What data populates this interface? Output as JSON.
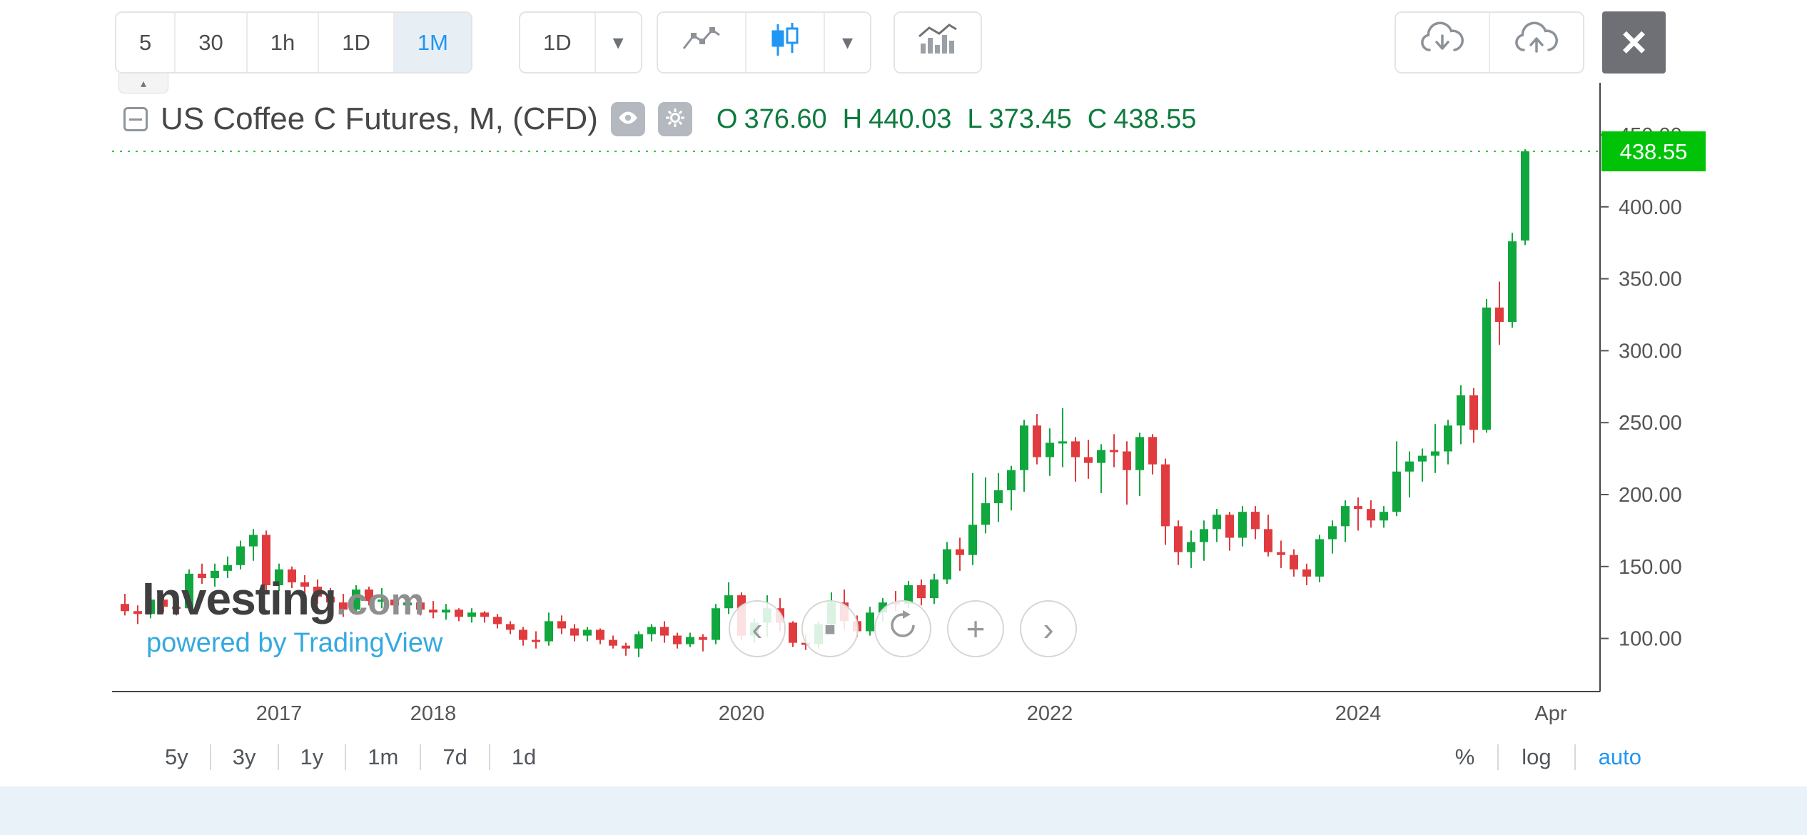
{
  "toolbar": {
    "intervals": [
      {
        "label": "5",
        "selected": false
      },
      {
        "label": "30",
        "selected": false
      },
      {
        "label": "1h",
        "selected": false
      },
      {
        "label": "1D",
        "selected": false
      },
      {
        "label": "1M",
        "selected": true
      }
    ],
    "dropdown_resolution": "1D"
  },
  "icons": {
    "caret": "▾",
    "close": "×",
    "scroll_up": "▴",
    "pan_left": "‹",
    "pan_right": "›",
    "zoom_in": "+",
    "reset_view": "■"
  },
  "chart": {
    "title": "US Coffee C Futures, M, (CFD)",
    "ohlc": {
      "o_label": "O",
      "o": "376.60",
      "h_label": "H",
      "h": "440.03",
      "l_label": "L",
      "l": "373.45",
      "c_label": "C",
      "c": "438.55"
    }
  },
  "watermark": {
    "brand": "Investing",
    "suffix": ".com",
    "powered": "powered by TradingView"
  },
  "bottom_toolbar": {
    "ranges": [
      "5y",
      "3y",
      "1y",
      "1m",
      "7d",
      "1d"
    ],
    "scales": [
      {
        "label": "%",
        "selected": false
      },
      {
        "label": "log",
        "selected": false
      },
      {
        "label": "auto",
        "selected": true
      }
    ]
  },
  "chart_data": {
    "type": "candlestick",
    "title": "US Coffee C Futures, M, (CFD)",
    "instrument": "US Coffee C Futures",
    "resolution": "M",
    "market": "CFD",
    "last_price": 438.55,
    "last_price_label": "438.55",
    "current_bar": {
      "open": 376.6,
      "high": 440.03,
      "low": 373.45,
      "close": 438.55
    },
    "colors": {
      "up": "#10a73e",
      "down": "#e03b3e",
      "last_price_line": "#2fc52f",
      "last_price_bg": "#00c307"
    },
    "y_axis": {
      "ticks": [
        {
          "value": 450,
          "label": "450.00"
        },
        {
          "value": 400,
          "label": "400.00"
        },
        {
          "value": 350,
          "label": "350.00"
        },
        {
          "value": 300,
          "label": "300.00"
        },
        {
          "value": 250,
          "label": "250.00"
        },
        {
          "value": 200,
          "label": "200.00"
        },
        {
          "value": 150,
          "label": "150.00"
        },
        {
          "value": 100,
          "label": "100.00"
        }
      ]
    },
    "x_axis": {
      "ticks": [
        {
          "i": 12,
          "label": "2017"
        },
        {
          "i": 24,
          "label": "2018"
        },
        {
          "i": 48,
          "label": "2020"
        },
        {
          "i": 72,
          "label": "2022"
        },
        {
          "i": 96,
          "label": "2024"
        },
        {
          "i": 111,
          "label": "Apr"
        }
      ]
    },
    "candles": [
      [
        "2016-01",
        124,
        131,
        116,
        119
      ],
      [
        "2016-02",
        119,
        123,
        110,
        117
      ],
      [
        "2016-03",
        117,
        134,
        114,
        127
      ],
      [
        "2016-04",
        127,
        131,
        118,
        122
      ],
      [
        "2016-05",
        122,
        127,
        116,
        121
      ],
      [
        "2016-06",
        121,
        148,
        119,
        145
      ],
      [
        "2016-07",
        145,
        152,
        138,
        142
      ],
      [
        "2016-08",
        142,
        152,
        136,
        147
      ],
      [
        "2016-09",
        147,
        157,
        142,
        151
      ],
      [
        "2016-10",
        151,
        168,
        148,
        164
      ],
      [
        "2016-11",
        164,
        176,
        154,
        172
      ],
      [
        "2016-12",
        172,
        175,
        133,
        137
      ],
      [
        "2017-01",
        137,
        152,
        133,
        148
      ],
      [
        "2017-02",
        148,
        150,
        135,
        139
      ],
      [
        "2017-03",
        139,
        144,
        131,
        136
      ],
      [
        "2017-04",
        136,
        141,
        124,
        129
      ],
      [
        "2017-05",
        129,
        135,
        121,
        125
      ],
      [
        "2017-06",
        125,
        131,
        115,
        120
      ],
      [
        "2017-07",
        120,
        137,
        118,
        134
      ],
      [
        "2017-08",
        134,
        136,
        123,
        126
      ],
      [
        "2017-09",
        126,
        135,
        121,
        127
      ],
      [
        "2017-10",
        127,
        130,
        119,
        123
      ],
      [
        "2017-11",
        123,
        129,
        118,
        125
      ],
      [
        "2017-12",
        125,
        127,
        116,
        120
      ],
      [
        "2018-01",
        120,
        126,
        114,
        118
      ],
      [
        "2018-02",
        118,
        124,
        113,
        120
      ],
      [
        "2018-03",
        120,
        121,
        112,
        115
      ],
      [
        "2018-04",
        115,
        121,
        111,
        118
      ],
      [
        "2018-05",
        118,
        119,
        111,
        115
      ],
      [
        "2018-06",
        115,
        117,
        107,
        110
      ],
      [
        "2018-07",
        110,
        112,
        103,
        106
      ],
      [
        "2018-08",
        106,
        108,
        95,
        99
      ],
      [
        "2018-09",
        99,
        105,
        93,
        98
      ],
      [
        "2018-10",
        98,
        118,
        95,
        112
      ],
      [
        "2018-11",
        112,
        116,
        103,
        107
      ],
      [
        "2018-12",
        107,
        110,
        98,
        102
      ],
      [
        "2019-01",
        102,
        108,
        98,
        106
      ],
      [
        "2019-02",
        106,
        107,
        96,
        99
      ],
      [
        "2019-03",
        99,
        102,
        93,
        95
      ],
      [
        "2019-04",
        95,
        97,
        88,
        93
      ],
      [
        "2019-05",
        93,
        105,
        87,
        103
      ],
      [
        "2019-06",
        103,
        110,
        98,
        108
      ],
      [
        "2019-07",
        108,
        112,
        97,
        102
      ],
      [
        "2019-08",
        102,
        104,
        93,
        96
      ],
      [
        "2019-09",
        96,
        104,
        94,
        101
      ],
      [
        "2019-10",
        101,
        103,
        91,
        99
      ],
      [
        "2019-11",
        99,
        124,
        96,
        121
      ],
      [
        "2019-12",
        121,
        139,
        117,
        130
      ],
      [
        "2020-01",
        130,
        132,
        99,
        102
      ],
      [
        "2020-02",
        102,
        114,
        97,
        111
      ],
      [
        "2020-03",
        111,
        130,
        101,
        121
      ],
      [
        "2020-04",
        121,
        128,
        105,
        111
      ],
      [
        "2020-05",
        111,
        112,
        94,
        97
      ],
      [
        "2020-06",
        97,
        103,
        92,
        96
      ],
      [
        "2020-07",
        96,
        112,
        93,
        110
      ],
      [
        "2020-08",
        110,
        132,
        108,
        125
      ],
      [
        "2020-09",
        125,
        134,
        106,
        112
      ],
      [
        "2020-10",
        112,
        116,
        101,
        105
      ],
      [
        "2020-11",
        105,
        122,
        102,
        118
      ],
      [
        "2020-12",
        118,
        128,
        112,
        125
      ],
      [
        "2021-01",
        125,
        133,
        119,
        124
      ],
      [
        "2021-02",
        124,
        140,
        121,
        137
      ],
      [
        "2021-03",
        137,
        141,
        123,
        128
      ],
      [
        "2021-04",
        128,
        145,
        124,
        141
      ],
      [
        "2021-05",
        141,
        167,
        138,
        162
      ],
      [
        "2021-06",
        162,
        170,
        147,
        158
      ],
      [
        "2021-07",
        158,
        215,
        151,
        179
      ],
      [
        "2021-08",
        179,
        212,
        173,
        194
      ],
      [
        "2021-09",
        194,
        215,
        181,
        203
      ],
      [
        "2021-10",
        203,
        220,
        189,
        217
      ],
      [
        "2021-11",
        217,
        252,
        202,
        248
      ],
      [
        "2021-12",
        248,
        256,
        221,
        226
      ],
      [
        "2022-01",
        226,
        246,
        213,
        236
      ],
      [
        "2022-02",
        236,
        260,
        219,
        237
      ],
      [
        "2022-03",
        237,
        240,
        209,
        226
      ],
      [
        "2022-04",
        226,
        238,
        211,
        222
      ],
      [
        "2022-05",
        222,
        235,
        201,
        231
      ],
      [
        "2022-06",
        231,
        242,
        219,
        230
      ],
      [
        "2022-07",
        230,
        237,
        193,
        217
      ],
      [
        "2022-08",
        217,
        243,
        199,
        240
      ],
      [
        "2022-09",
        240,
        242,
        214,
        221
      ],
      [
        "2022-10",
        221,
        225,
        165,
        178
      ],
      [
        "2022-11",
        178,
        182,
        151,
        160
      ],
      [
        "2022-12",
        160,
        175,
        149,
        167
      ],
      [
        "2023-01",
        167,
        182,
        154,
        176
      ],
      [
        "2023-02",
        176,
        190,
        167,
        186
      ],
      [
        "2023-03",
        186,
        188,
        161,
        170
      ],
      [
        "2023-04",
        170,
        192,
        164,
        188
      ],
      [
        "2023-05",
        188,
        192,
        169,
        176
      ],
      [
        "2023-06",
        176,
        186,
        157,
        160
      ],
      [
        "2023-07",
        160,
        168,
        149,
        158
      ],
      [
        "2023-08",
        158,
        162,
        143,
        148
      ],
      [
        "2023-09",
        148,
        152,
        137,
        143
      ],
      [
        "2023-10",
        143,
        172,
        139,
        169
      ],
      [
        "2023-11",
        169,
        182,
        159,
        178
      ],
      [
        "2023-12",
        178,
        196,
        167,
        192
      ],
      [
        "2024-01",
        192,
        198,
        175,
        190
      ],
      [
        "2024-02",
        190,
        196,
        177,
        182
      ],
      [
        "2024-03",
        182,
        192,
        177,
        188
      ],
      [
        "2024-04",
        188,
        237,
        185,
        216
      ],
      [
        "2024-05",
        216,
        230,
        198,
        223
      ],
      [
        "2024-06",
        223,
        232,
        209,
        227
      ],
      [
        "2024-07",
        227,
        249,
        215,
        230
      ],
      [
        "2024-08",
        230,
        252,
        221,
        248
      ],
      [
        "2024-09",
        248,
        276,
        235,
        269
      ],
      [
        "2024-10",
        269,
        274,
        236,
        245
      ],
      [
        "2024-11",
        245,
        336,
        243,
        330
      ],
      [
        "2024-12",
        330,
        348,
        304,
        320
      ],
      [
        "2025-01",
        320,
        382,
        316,
        376
      ],
      [
        "2025-02",
        376.6,
        440.03,
        373.45,
        438.55
      ]
    ]
  }
}
